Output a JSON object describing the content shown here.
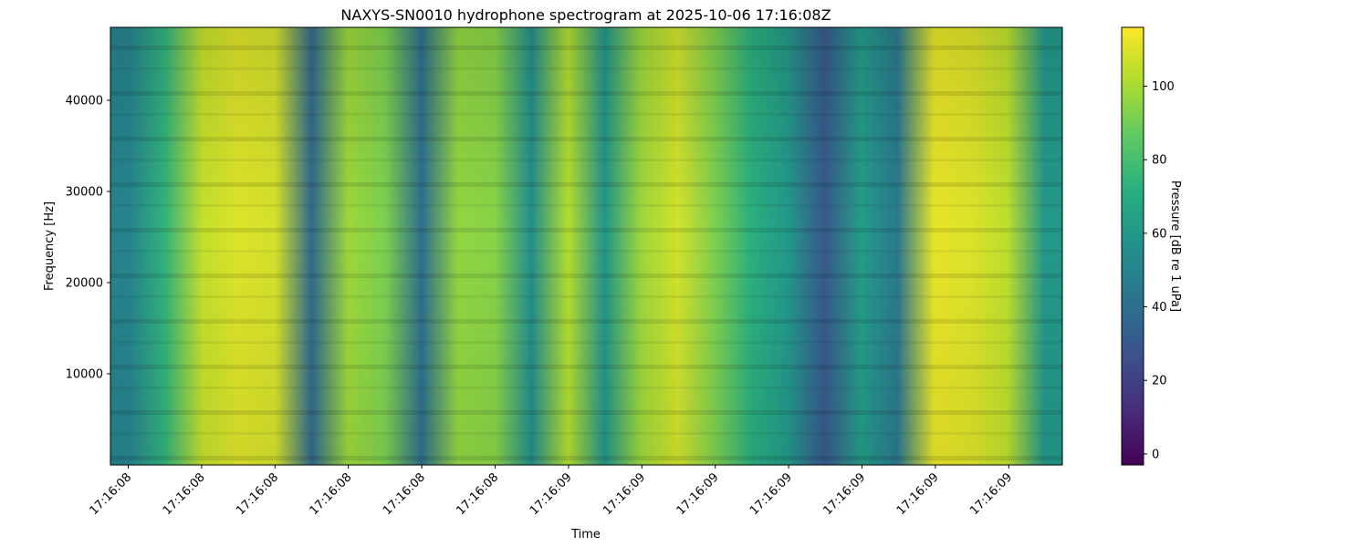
{
  "chart_data": {
    "type": "heatmap",
    "title": "NAXYS-SN0010 hydrophone spectrogram at 2025-10-06 17:16:08Z",
    "xlabel": "Time",
    "ylabel": "Frequency [Hz]",
    "colorbar_label": "Pressure [dB re 1 uPa]",
    "colormap": "viridis",
    "ylim": [
      0,
      48000
    ],
    "y_ticks": [
      10000,
      20000,
      30000,
      40000
    ],
    "x_tick_labels": [
      "17:16:08",
      "17:16:08",
      "17:16:08",
      "17:16:08",
      "17:16:08",
      "17:16:08",
      "17:16:09",
      "17:16:09",
      "17:16:09",
      "17:16:09",
      "17:16:09",
      "17:16:09",
      "17:16:09"
    ],
    "color_range": [
      -3,
      116
    ],
    "colorbar_ticks": [
      0,
      20,
      40,
      60,
      80,
      100
    ],
    "time_columns": 26,
    "column_levels_db": [
      50,
      74,
      105,
      110,
      108,
      38,
      98,
      92,
      40,
      96,
      94,
      55,
      102,
      58,
      98,
      108,
      92,
      72,
      60,
      30,
      62,
      45,
      112,
      110,
      104,
      60
    ],
    "grid": false
  }
}
